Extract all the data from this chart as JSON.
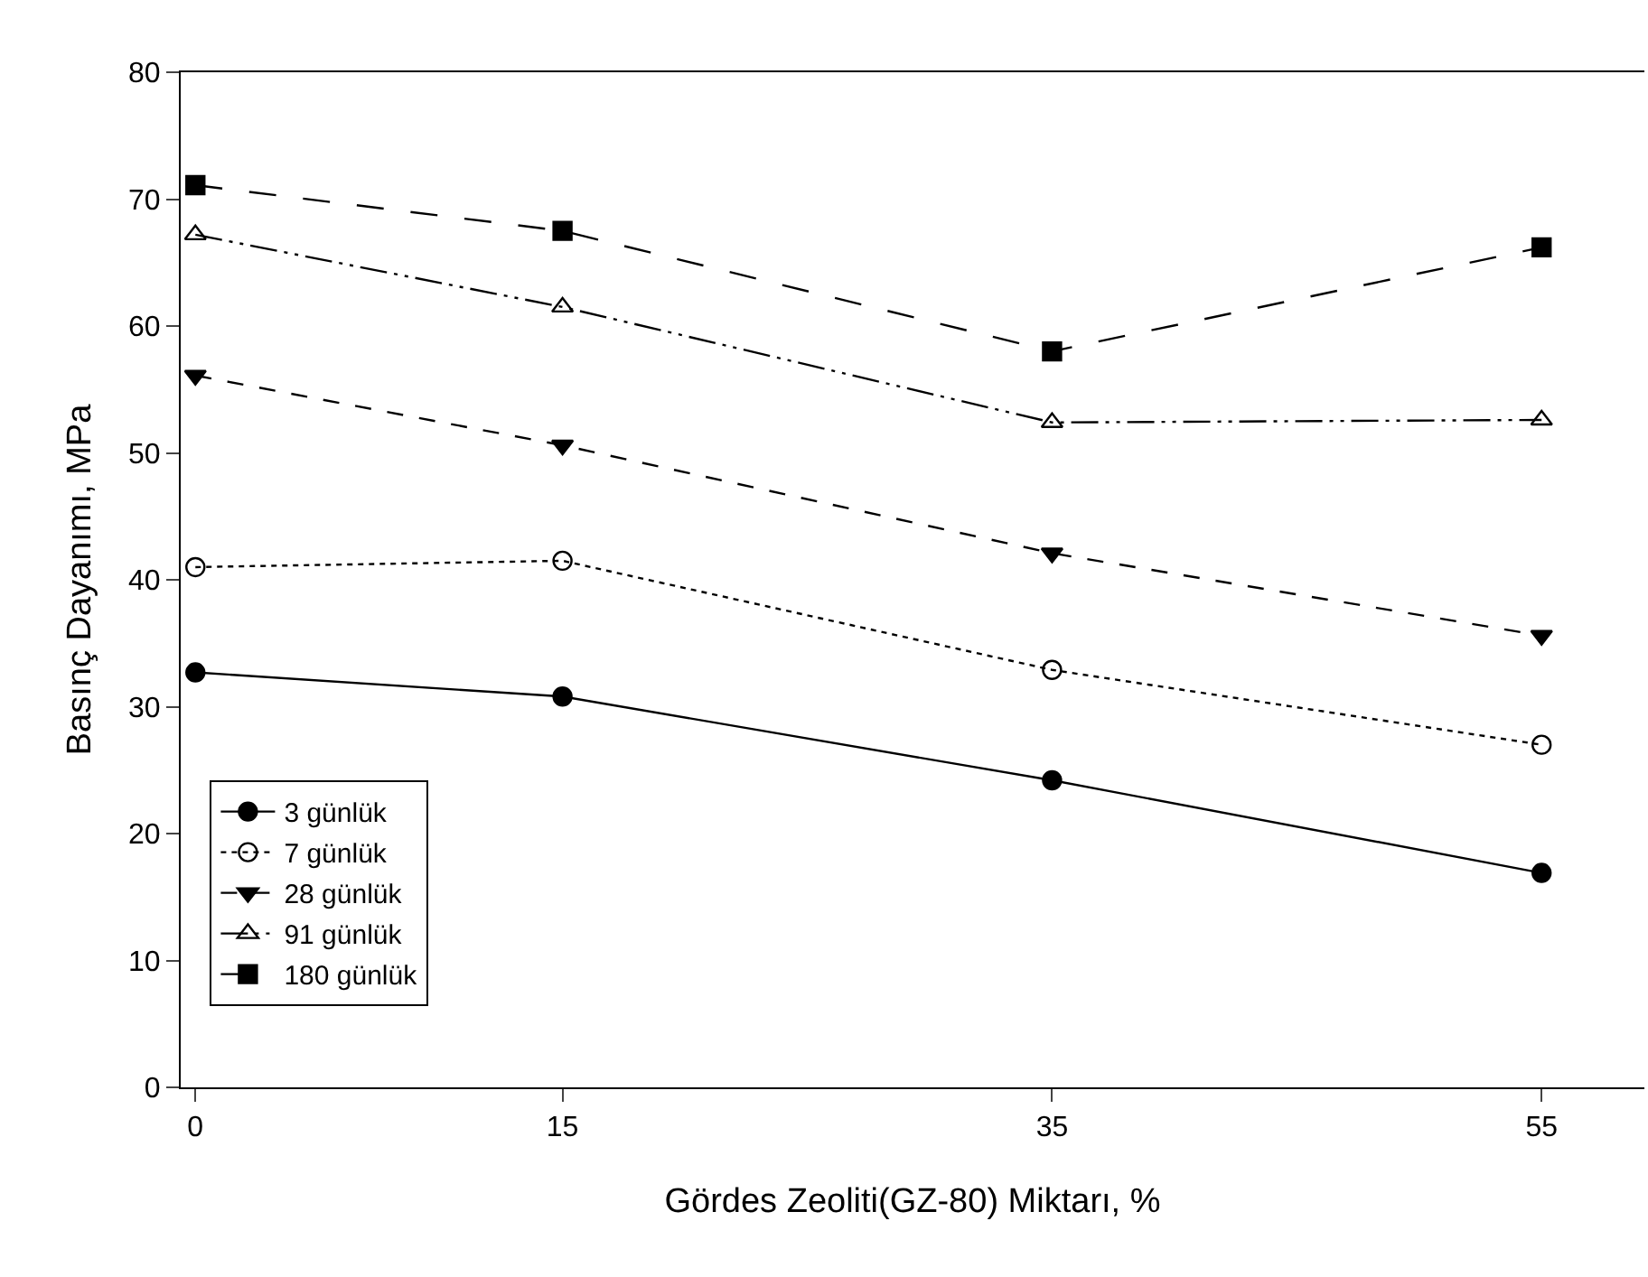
{
  "chart_data": {
    "type": "line",
    "xlabel": "Gördes Zeoliti(GZ-80) Miktarı, %",
    "ylabel": "Basınç Dayanımı, MPa",
    "x": [
      0,
      15,
      35,
      55
    ],
    "xlim": [
      -0.6,
      59.2
    ],
    "xticks": [
      0,
      15,
      35,
      55
    ],
    "ylim": [
      0,
      80
    ],
    "yticks": [
      0,
      10,
      20,
      30,
      40,
      50,
      60,
      70,
      80
    ],
    "legend": "bottom left",
    "series": [
      {
        "name": "3 günlük",
        "color": "#000000",
        "values": [
          32.7,
          30.8,
          24.2,
          16.9
        ],
        "marker": "circle",
        "line_style": "solid"
      },
      {
        "name": "7 günlük",
        "color": "#000000",
        "values": [
          41.0,
          41.5,
          32.9,
          27.0
        ],
        "marker": "circle",
        "line_style": "dotted"
      },
      {
        "name": "28 günlük",
        "color": "#000000",
        "values": [
          56.1,
          50.6,
          42.1,
          35.6
        ],
        "marker": "triangle",
        "line_style": "dashed"
      },
      {
        "name": "91 günlük",
        "color": "#000000",
        "values": [
          67.2,
          61.5,
          52.4,
          52.6
        ],
        "marker": "triangle",
        "line_style": "dashed"
      },
      {
        "name": "180 günlük",
        "color": "#000000",
        "values": [
          71.1,
          67.5,
          58.0,
          66.2
        ],
        "marker": "square",
        "line_style": "dashed"
      }
    ]
  }
}
